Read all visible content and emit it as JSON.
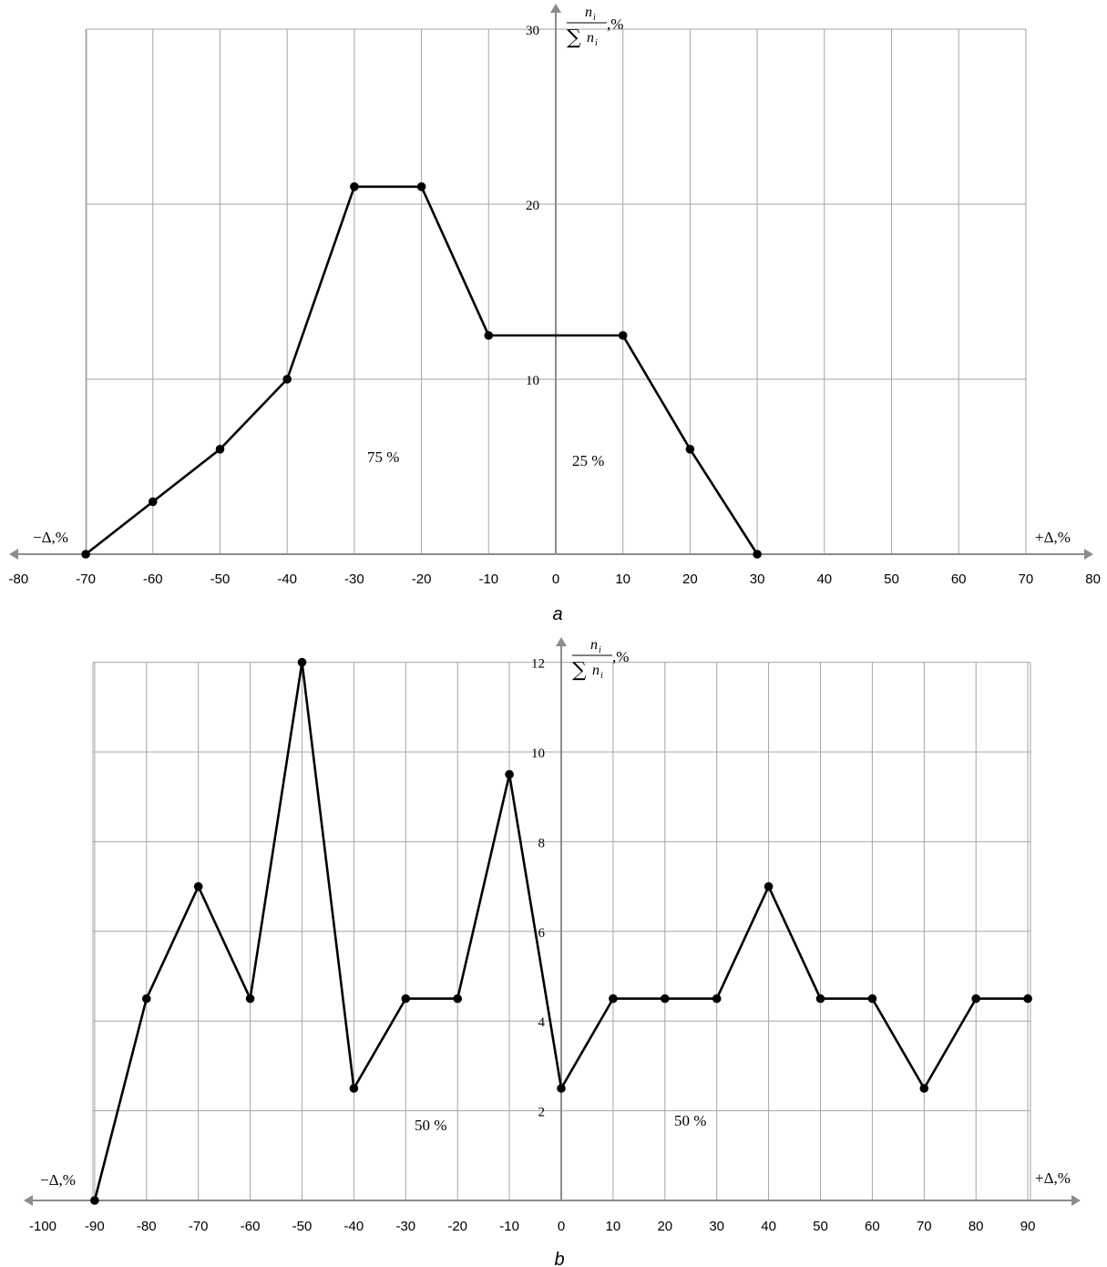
{
  "colors": {
    "grid": "#a6a6a6",
    "axis": "#8c8c8c",
    "line": "#000000",
    "marker": "#000000"
  },
  "chart_data": [
    {
      "id": "a",
      "type": "line",
      "caption": "a",
      "x": [
        -70,
        -60,
        -50,
        -40,
        -30,
        -20,
        -10,
        10,
        20,
        30
      ],
      "values": [
        0,
        3,
        6,
        10,
        21,
        21,
        12.5,
        12.5,
        6,
        0
      ],
      "xlim": [
        -80,
        80
      ],
      "ylim": [
        0,
        30
      ],
      "x_ticks": [
        -80,
        -70,
        -60,
        -50,
        -40,
        -30,
        -20,
        -10,
        0,
        10,
        20,
        30,
        40,
        50,
        60,
        70,
        80
      ],
      "y_ticks": [
        10,
        20,
        30
      ],
      "ylabel": {
        "numerator": "n",
        "sub": "i",
        "sum": "∑",
        "unit": ",%"
      },
      "xlabel_negative": "−Δ,%",
      "xlabel_positive": "+Δ,%",
      "annotations": [
        "75 %",
        "25 %"
      ],
      "grid": true
    },
    {
      "id": "b",
      "type": "line",
      "caption": "b",
      "x": [
        -90,
        -80,
        -70,
        -60,
        -50,
        -40,
        -30,
        -20,
        -10,
        0,
        10,
        20,
        30,
        40,
        50,
        60,
        70,
        80,
        90
      ],
      "values": [
        0,
        4.5,
        7,
        4.5,
        12,
        2.5,
        4.5,
        4.5,
        9.5,
        2.5,
        4.5,
        4.5,
        4.5,
        7,
        4.5,
        4.5,
        2.5,
        4.5,
        4.5
      ],
      "xlim": [
        -100,
        90
      ],
      "ylim": [
        0,
        12
      ],
      "x_ticks": [
        -100,
        -90,
        -80,
        -70,
        -60,
        -50,
        -40,
        -30,
        -20,
        -10,
        0,
        10,
        20,
        30,
        40,
        50,
        60,
        70,
        80,
        90
      ],
      "y_ticks": [
        2,
        4,
        6,
        8,
        10,
        12
      ],
      "ylabel": {
        "numerator": "n",
        "sub": "i",
        "sum": "∑",
        "unit": ",%"
      },
      "xlabel_negative": "−Δ,%",
      "xlabel_positive": "+Δ,%",
      "annotations": [
        "50 %",
        "50 %"
      ],
      "grid": true
    }
  ]
}
